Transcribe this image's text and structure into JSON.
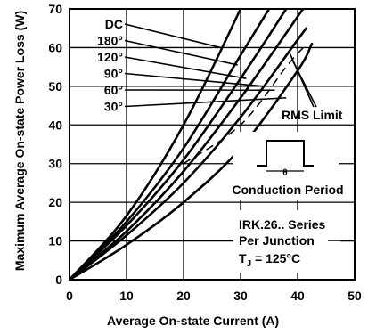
{
  "chart_data": {
    "type": "line",
    "xlabel": "Average On-state Current (A)",
    "ylabel": "Maximum Average On-state Power Loss (W)",
    "xlim": [
      0,
      50
    ],
    "ylim": [
      0,
      70
    ],
    "x_ticks": [
      "0",
      "10",
      "20",
      "30",
      "40",
      "50"
    ],
    "y_ticks": [
      "0",
      "10",
      "20",
      "30",
      "40",
      "50",
      "60",
      "70"
    ],
    "grid": true,
    "series": [
      {
        "name": "DC",
        "points": [
          [
            0,
            0
          ],
          [
            10,
            16.5
          ],
          [
            20,
            40
          ],
          [
            30,
            70
          ],
          [
            33,
            80
          ]
        ]
      },
      {
        "name": "180°",
        "points": [
          [
            0,
            0
          ],
          [
            10,
            15
          ],
          [
            20,
            34
          ],
          [
            30,
            58
          ],
          [
            35,
            70
          ]
        ]
      },
      {
        "name": "120°",
        "points": [
          [
            0,
            0
          ],
          [
            10,
            14
          ],
          [
            20,
            31
          ],
          [
            30,
            52
          ],
          [
            38,
            70
          ]
        ]
      },
      {
        "name": "90°",
        "points": [
          [
            0,
            0
          ],
          [
            10,
            12.5
          ],
          [
            20,
            28
          ],
          [
            30,
            47
          ],
          [
            40,
            68
          ],
          [
            41,
            70
          ]
        ]
      },
      {
        "name": "60°",
        "points": [
          [
            0,
            0
          ],
          [
            10,
            11.5
          ],
          [
            20,
            25
          ],
          [
            30,
            42
          ],
          [
            40,
            62
          ],
          [
            41.5,
            65
          ]
        ]
      },
      {
        "name": "30°",
        "points": [
          [
            0,
            0
          ],
          [
            10,
            9
          ],
          [
            20,
            20
          ],
          [
            30,
            34
          ],
          [
            40,
            54
          ],
          [
            42.5,
            61
          ]
        ]
      }
    ],
    "rms_limit": {
      "name": "RMS Limit",
      "points": [
        [
          20,
          30
        ],
        [
          30,
          40
        ],
        [
          38,
          55
        ],
        [
          41,
          60
        ]
      ]
    },
    "annotations": {
      "rms_limit_label": "RMS Limit",
      "conduction_period_label": "Conduction Period",
      "conduction_period_symbol": "θ",
      "device_line1": "IRK.26.. Series",
      "device_line2": "Per Junction",
      "tj_prefix": "T",
      "tj_sub": "J",
      "tj_suffix": " = 125°C"
    },
    "curve_labels": [
      "DC",
      "180°",
      "120°",
      "90°",
      "60°",
      "30°"
    ]
  }
}
